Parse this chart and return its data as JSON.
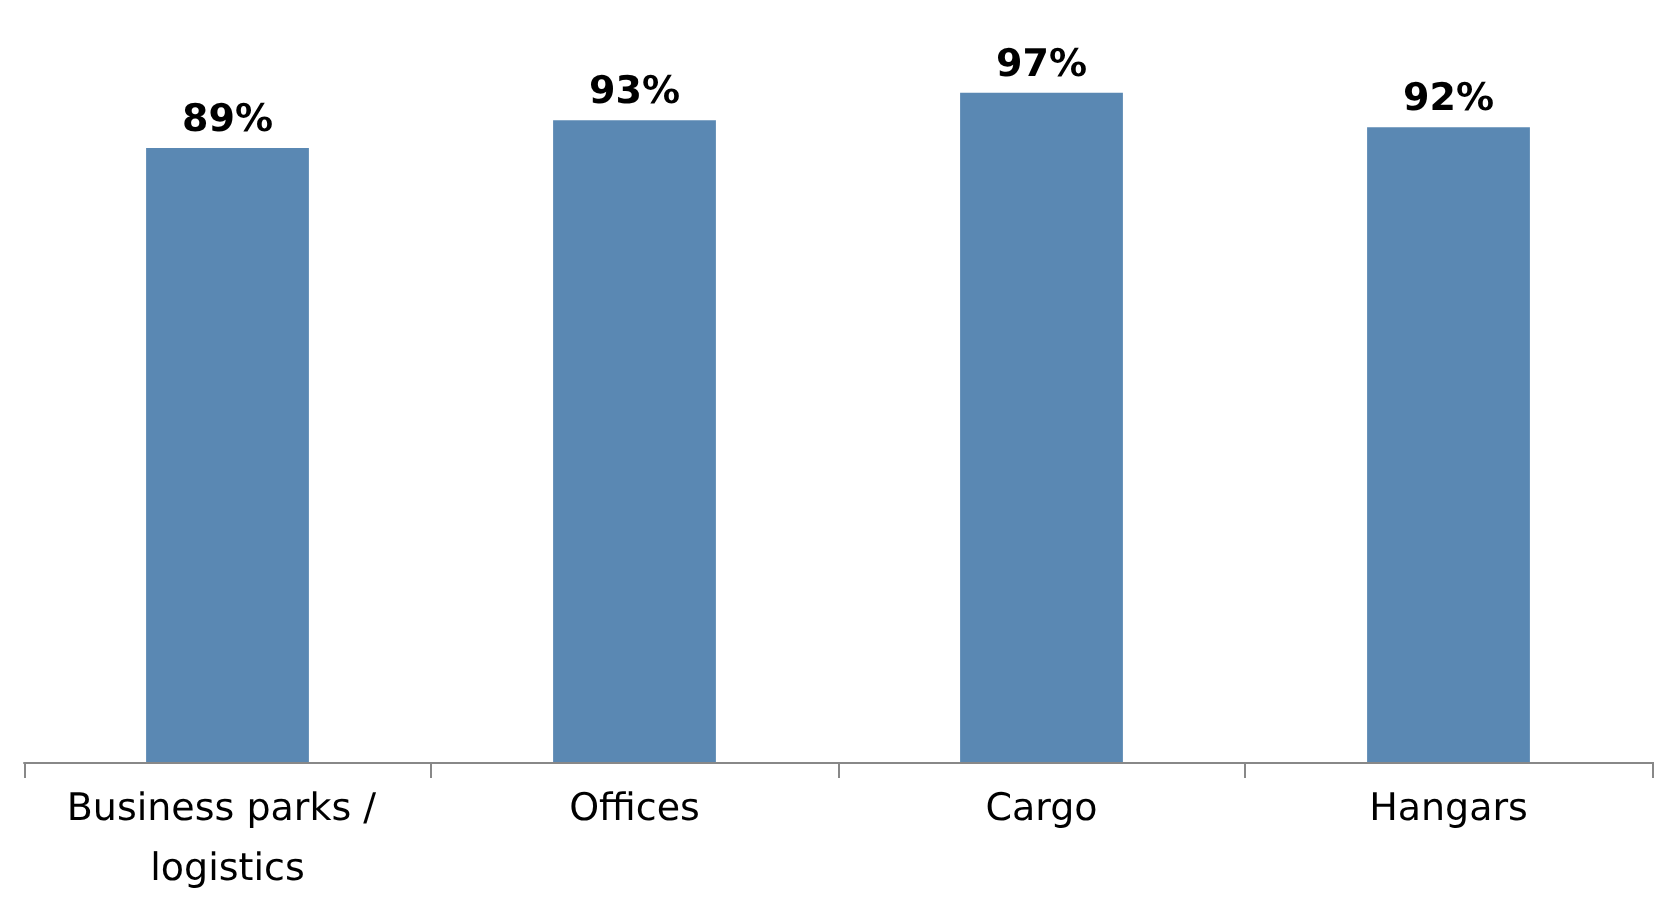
{
  "chart_data": {
    "type": "bar",
    "categories": [
      "Business parks / logistics",
      "Offices",
      "Cargo",
      "Hangars"
    ],
    "values": [
      89,
      93,
      97,
      92
    ],
    "value_labels": [
      "89%",
      "93%",
      "97%",
      "92%"
    ],
    "color": "#5a88b3"
  }
}
